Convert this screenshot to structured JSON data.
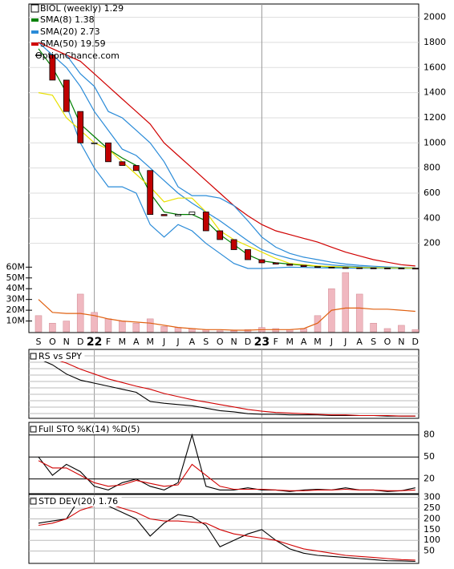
{
  "chart_data": [
    {
      "type": "candlestick",
      "title": "BIOL (weekly) 1.29",
      "watermark": "OptionChance.com",
      "categories": [
        "S",
        "O",
        "N",
        "D",
        "22",
        "F",
        "M",
        "A",
        "M",
        "J",
        "J",
        "A",
        "S",
        "O",
        "N",
        "D",
        "23",
        "F",
        "M",
        "A",
        "M",
        "J",
        "J",
        "A",
        "S",
        "O",
        "N",
        "D"
      ],
      "close": [
        1700,
        1500,
        1250,
        1000,
        1000,
        850,
        820,
        780,
        430,
        420,
        430,
        450,
        300,
        230,
        150,
        70,
        45,
        35,
        25,
        15,
        10,
        7,
        5,
        4,
        3,
        2.5,
        2,
        1.29
      ],
      "up_color": "#ffffff",
      "down_color": "#c00000",
      "series": [
        {
          "name": "SMA(8) 1.38",
          "color": "#008000",
          "values": [
            1750,
            1600,
            1400,
            1150,
            1050,
            950,
            880,
            820,
            600,
            450,
            430,
            430,
            380,
            270,
            190,
            110,
            60,
            45,
            35,
            25,
            18,
            12,
            8,
            6,
            4.5,
            3.5,
            2.5,
            1.38
          ]
        },
        {
          "name": "SMA(20) 2.73",
          "color": "#2a8bd8",
          "values": [
            1800,
            1700,
            1600,
            1450,
            1250,
            1100,
            950,
            900,
            800,
            700,
            600,
            520,
            450,
            380,
            300,
            220,
            150,
            110,
            80,
            55,
            40,
            28,
            20,
            14,
            9,
            6,
            4,
            2.73
          ]
        },
        {
          "name": "SMA(50) 19.59",
          "color": "#d00000",
          "values": [
            1800,
            1750,
            1700,
            1650,
            1550,
            1450,
            1350,
            1250,
            1150,
            1000,
            900,
            800,
            700,
            600,
            500,
            420,
            350,
            300,
            270,
            240,
            210,
            170,
            130,
            100,
            70,
            50,
            30,
            19.59
          ]
        },
        {
          "color": "#2a8bd8",
          "values": [
            null,
            null,
            1700,
            1550,
            1450,
            1250,
            1200,
            1100,
            1000,
            850,
            650,
            580,
            580,
            560,
            500,
            380,
            250,
            170,
            120,
            90,
            70,
            50,
            35,
            25,
            18,
            12,
            8,
            5
          ]
        },
        {
          "color": "#2a8bd8",
          "values": [
            null,
            null,
            1300,
            1000,
            800,
            650,
            650,
            600,
            350,
            250,
            350,
            300,
            200,
            120,
            40,
            0,
            0,
            5,
            10,
            8,
            5,
            4,
            3,
            2,
            1.5,
            1,
            0.8,
            0.5
          ]
        },
        {
          "color": "#e8e000",
          "values": [
            1400,
            1380,
            1200,
            1100,
            1000,
            950,
            850,
            750,
            650,
            530,
            560,
            560,
            450,
            300,
            230,
            180,
            130,
            80,
            40,
            30,
            20,
            15,
            12,
            8,
            6,
            5,
            4,
            3
          ]
        }
      ],
      "ylim": [
        0,
        2074
      ],
      "yticks": [
        200,
        400,
        600,
        800,
        1000,
        1200,
        1400,
        1600,
        1800,
        2000
      ],
      "grid": true,
      "volume": {
        "color": "#f0b8c0",
        "values": [
          15,
          8,
          10,
          35,
          18,
          12,
          10,
          8,
          12,
          5,
          4,
          3,
          2,
          1,
          1,
          2,
          4,
          3,
          2,
          3,
          15,
          40,
          55,
          35,
          8,
          3,
          6,
          2
        ],
        "average_color": "#e06010",
        "average": [
          30,
          18,
          17,
          17,
          15,
          12,
          10,
          9,
          8,
          6,
          4,
          3,
          2,
          2,
          1.5,
          1.5,
          2,
          2,
          2,
          3,
          8,
          20,
          22,
          22,
          21,
          21,
          20,
          19
        ]
      },
      "y2lim": [
        0,
        61
      ],
      "y2ticks": [
        {
          "value": 60,
          "label": "60M"
        },
        {
          "value": 50,
          "label": "50M"
        },
        {
          "value": 40,
          "label": "40M"
        },
        {
          "value": 30,
          "label": "30M"
        },
        {
          "value": 20,
          "label": "20M"
        },
        {
          "value": 10,
          "label": "10M"
        }
      ]
    },
    {
      "type": "line",
      "title": "RS vs SPY",
      "ylim": [
        0,
        105
      ],
      "series": [
        {
          "color": "#000000",
          "values": [
            95,
            85,
            70,
            60,
            55,
            50,
            45,
            40,
            25,
            22,
            20,
            18,
            14,
            10,
            8,
            5,
            4,
            4,
            3,
            3,
            3,
            2,
            2,
            2,
            2,
            1,
            1,
            1
          ]
        },
        {
          "color": "#d00000",
          "values": [
            100,
            95,
            88,
            78,
            70,
            62,
            56,
            50,
            45,
            38,
            33,
            28,
            24,
            20,
            16,
            12,
            9,
            7,
            6,
            5,
            4,
            3,
            3,
            2,
            2,
            2,
            1,
            1
          ]
        }
      ]
    },
    {
      "type": "line",
      "title": "Full STO %K(14) %D(5)",
      "ylim": [
        0,
        95
      ],
      "yticks": [
        80,
        50,
        20
      ],
      "series": [
        {
          "color": "#000000",
          "values": [
            50,
            25,
            40,
            30,
            10,
            5,
            15,
            20,
            10,
            5,
            15,
            80,
            10,
            5,
            5,
            8,
            5,
            5,
            3,
            5,
            6,
            5,
            8,
            5,
            5,
            3,
            4,
            8
          ]
        },
        {
          "color": "#d00000",
          "values": [
            45,
            35,
            35,
            25,
            15,
            10,
            12,
            18,
            14,
            10,
            12,
            40,
            25,
            10,
            6,
            6,
            6,
            5,
            4,
            4,
            5,
            5,
            6,
            5,
            5,
            4,
            4,
            5
          ]
        }
      ]
    },
    {
      "type": "line",
      "title": "STD DEV(20) 1.76",
      "ylim": [
        0,
        310
      ],
      "yticks": [
        300,
        250,
        200,
        150,
        100,
        50
      ],
      "series": [
        {
          "color": "#000000",
          "values": [
            180,
            190,
            200,
            300,
            280,
            260,
            230,
            200,
            120,
            180,
            220,
            210,
            170,
            70,
            100,
            130,
            150,
            100,
            60,
            40,
            30,
            25,
            20,
            15,
            10,
            5,
            4,
            1.76
          ]
        },
        {
          "color": "#d00000",
          "values": [
            170,
            180,
            200,
            240,
            260,
            270,
            250,
            230,
            200,
            190,
            190,
            185,
            180,
            150,
            130,
            120,
            110,
            100,
            80,
            60,
            50,
            40,
            30,
            25,
            20,
            15,
            10,
            8
          ]
        }
      ]
    }
  ]
}
